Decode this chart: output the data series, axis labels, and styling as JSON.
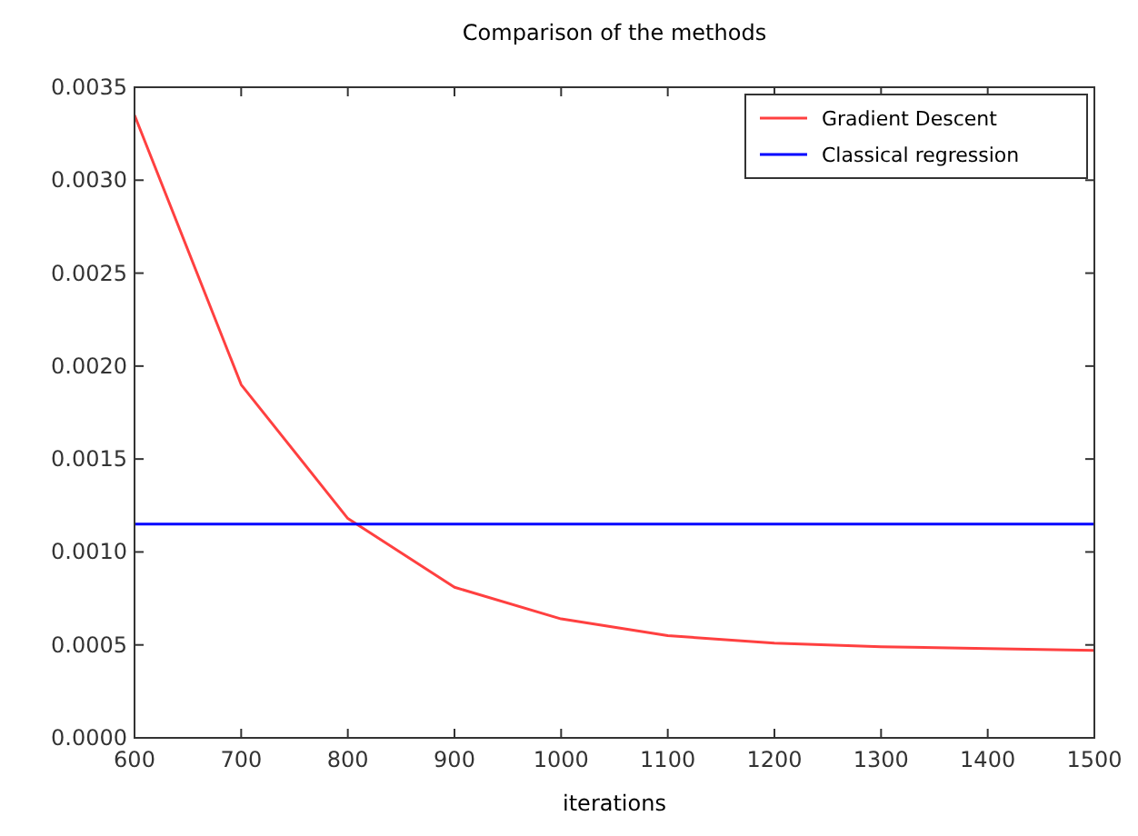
{
  "chart_data": {
    "type": "line",
    "title": "Comparison of the methods",
    "xlabel": "iterations",
    "x": [
      600,
      700,
      800,
      900,
      1000,
      1100,
      1200,
      1300,
      1400,
      1500
    ],
    "series": [
      {
        "name": "Gradient Descent",
        "color": "#ff4040",
        "values": [
          0.00335,
          0.0019,
          0.00118,
          0.00081,
          0.00064,
          0.00055,
          0.00051,
          0.00049,
          0.00048,
          0.00047
        ]
      },
      {
        "name": "Classical regression",
        "color": "#0000ff",
        "x": [
          600,
          1500
        ],
        "values": [
          0.00115,
          0.00115
        ]
      }
    ],
    "xlim": [
      600,
      1500
    ],
    "xticks": [
      600,
      700,
      800,
      900,
      1000,
      1100,
      1200,
      1300,
      1400,
      1500
    ],
    "ylim": [
      0,
      0.0035
    ],
    "yticks": [
      {
        "value": 0,
        "label": "0.0000"
      },
      {
        "value": 0.0005,
        "label": "0.0005"
      },
      {
        "value": 0.001,
        "label": "0.0010"
      },
      {
        "value": 0.0015,
        "label": "0.0015"
      },
      {
        "value": 0.002,
        "label": "0.0020"
      },
      {
        "value": 0.0025,
        "label": "0.0025"
      },
      {
        "value": 0.003,
        "label": "0.0030"
      },
      {
        "value": 0.0035,
        "label": "0.0035"
      }
    ],
    "grid": false,
    "legend": "top right",
    "marker": "none",
    "line_style": "solid"
  }
}
